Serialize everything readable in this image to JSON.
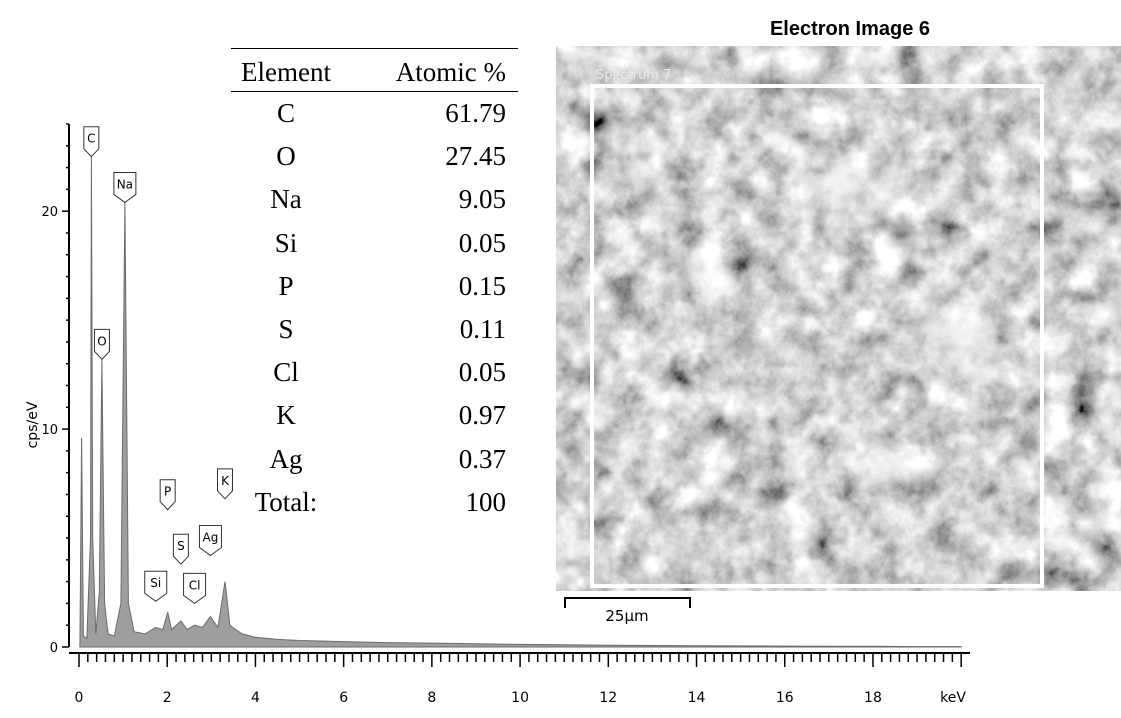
{
  "chart_data": {
    "type": "line",
    "xlabel": "keV",
    "ylabel": "cps/eV",
    "xlim": [
      0,
      20.2
    ],
    "ylim": [
      0,
      24
    ],
    "x_ticks": [
      "0",
      "2",
      "4",
      "6",
      "8",
      "10",
      "12",
      "14",
      "16",
      "18"
    ],
    "y_ticks": [
      "0",
      "10",
      "20"
    ],
    "peaks": [
      {
        "label": "C",
        "x": 0.28,
        "y": 22.5
      },
      {
        "label": "O",
        "x": 0.52,
        "y": 13.2
      },
      {
        "label": "Na",
        "x": 1.04,
        "y": 20.4
      },
      {
        "label": "Si",
        "x": 1.74,
        "y": 2.1
      },
      {
        "label": "P",
        "x": 2.01,
        "y": 6.3
      },
      {
        "label": "S",
        "x": 2.31,
        "y": 3.8
      },
      {
        "label": "Cl",
        "x": 2.62,
        "y": 2.0
      },
      {
        "label": "Ag",
        "x": 2.98,
        "y": 4.2
      },
      {
        "label": "K",
        "x": 3.31,
        "y": 6.8
      }
    ],
    "spectrum": [
      [
        0.02,
        0.05
      ],
      [
        0.06,
        9.6
      ],
      [
        0.1,
        0.5
      ],
      [
        0.18,
        0.4
      ],
      [
        0.26,
        5
      ],
      [
        0.28,
        22.5
      ],
      [
        0.31,
        5
      ],
      [
        0.38,
        0.6
      ],
      [
        0.46,
        2.5
      ],
      [
        0.52,
        13.2
      ],
      [
        0.58,
        2
      ],
      [
        0.66,
        0.6
      ],
      [
        0.8,
        0.5
      ],
      [
        0.95,
        2
      ],
      [
        1.04,
        20.4
      ],
      [
        1.12,
        2
      ],
      [
        1.25,
        0.7
      ],
      [
        1.5,
        0.6
      ],
      [
        1.74,
        0.9
      ],
      [
        1.9,
        0.8
      ],
      [
        2.01,
        1.6
      ],
      [
        2.1,
        0.8
      ],
      [
        2.31,
        1.2
      ],
      [
        2.45,
        0.8
      ],
      [
        2.62,
        1.0
      ],
      [
        2.8,
        0.9
      ],
      [
        2.98,
        1.4
      ],
      [
        3.15,
        0.9
      ],
      [
        3.31,
        3.0
      ],
      [
        3.42,
        1.0
      ],
      [
        3.55,
        0.8
      ],
      [
        3.7,
        0.6
      ],
      [
        4.0,
        0.45
      ],
      [
        4.5,
        0.35
      ],
      [
        5,
        0.3
      ],
      [
        6,
        0.25
      ],
      [
        7,
        0.2
      ],
      [
        8,
        0.18
      ],
      [
        9,
        0.15
      ],
      [
        10,
        0.12
      ],
      [
        11,
        0.1
      ],
      [
        12,
        0.08
      ],
      [
        13,
        0.07
      ],
      [
        14,
        0.06
      ],
      [
        15,
        0.05
      ],
      [
        16,
        0.04
      ],
      [
        17,
        0.03
      ],
      [
        18,
        0.03
      ],
      [
        19,
        0.02
      ],
      [
        20,
        0.02
      ]
    ],
    "table": {
      "headers": [
        "Element",
        "Atomic %"
      ],
      "rows": [
        [
          "C",
          "61.79"
        ],
        [
          "O",
          "27.45"
        ],
        [
          "Na",
          "9.05"
        ],
        [
          "Si",
          "0.05"
        ],
        [
          "P",
          "0.15"
        ],
        [
          "S",
          "0.11"
        ],
        [
          "Cl",
          "0.05"
        ],
        [
          "K",
          "0.97"
        ],
        [
          "Ag",
          "0.37"
        ],
        [
          "Total:",
          "100"
        ]
      ]
    }
  },
  "image": {
    "title": "Electron Image 6",
    "spectrum_label": "Spectrum 7",
    "scale_label": "25µm"
  },
  "colors": {
    "spectrum_fill": "#9e9e9e",
    "spectrum_stroke": "#6b6b6b",
    "axis": "#000000"
  }
}
